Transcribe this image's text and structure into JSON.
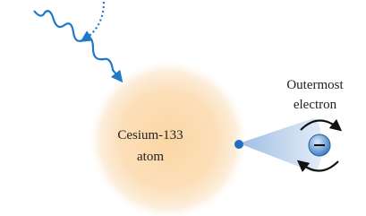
{
  "atom": {
    "label_lines": [
      "Cesium-133",
      "atom"
    ]
  },
  "electron": {
    "label_lines": [
      "Outermost",
      "electron"
    ]
  }
}
